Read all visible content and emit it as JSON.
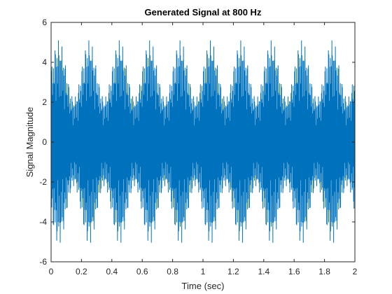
{
  "chart_data": {
    "type": "line",
    "title": "Generated Signal at 800 Hz",
    "xlabel": "Time (sec)",
    "ylabel": "Signal Magnitude",
    "xlim": [
      0,
      2
    ],
    "ylim": [
      -6,
      6
    ],
    "xticks": [
      0,
      0.2,
      0.4,
      0.6,
      0.8,
      1,
      1.2,
      1.4,
      1.6,
      1.8,
      2
    ],
    "xtick_labels": [
      "0",
      "0.2",
      "0.4",
      "0.6",
      "0.8",
      "1",
      "1.2",
      "1.4",
      "1.6",
      "1.8",
      "2"
    ],
    "yticks": [
      -6,
      -4,
      -2,
      0,
      2,
      4,
      6
    ],
    "ytick_labels": [
      "-6",
      "-4",
      "-2",
      "0",
      "2",
      "4",
      "6"
    ],
    "grid": false,
    "series": [
      {
        "color": "#0072bd",
        "model": {
          "envelope_period": 0.2,
          "envelope_peak": 5.1,
          "envelope_min": 2.2,
          "carrier_cycles_per_period": 9,
          "pattern": "periodic spiky oscillation, peak envelope around t = 0.05 + 0.2k"
        }
      }
    ]
  }
}
